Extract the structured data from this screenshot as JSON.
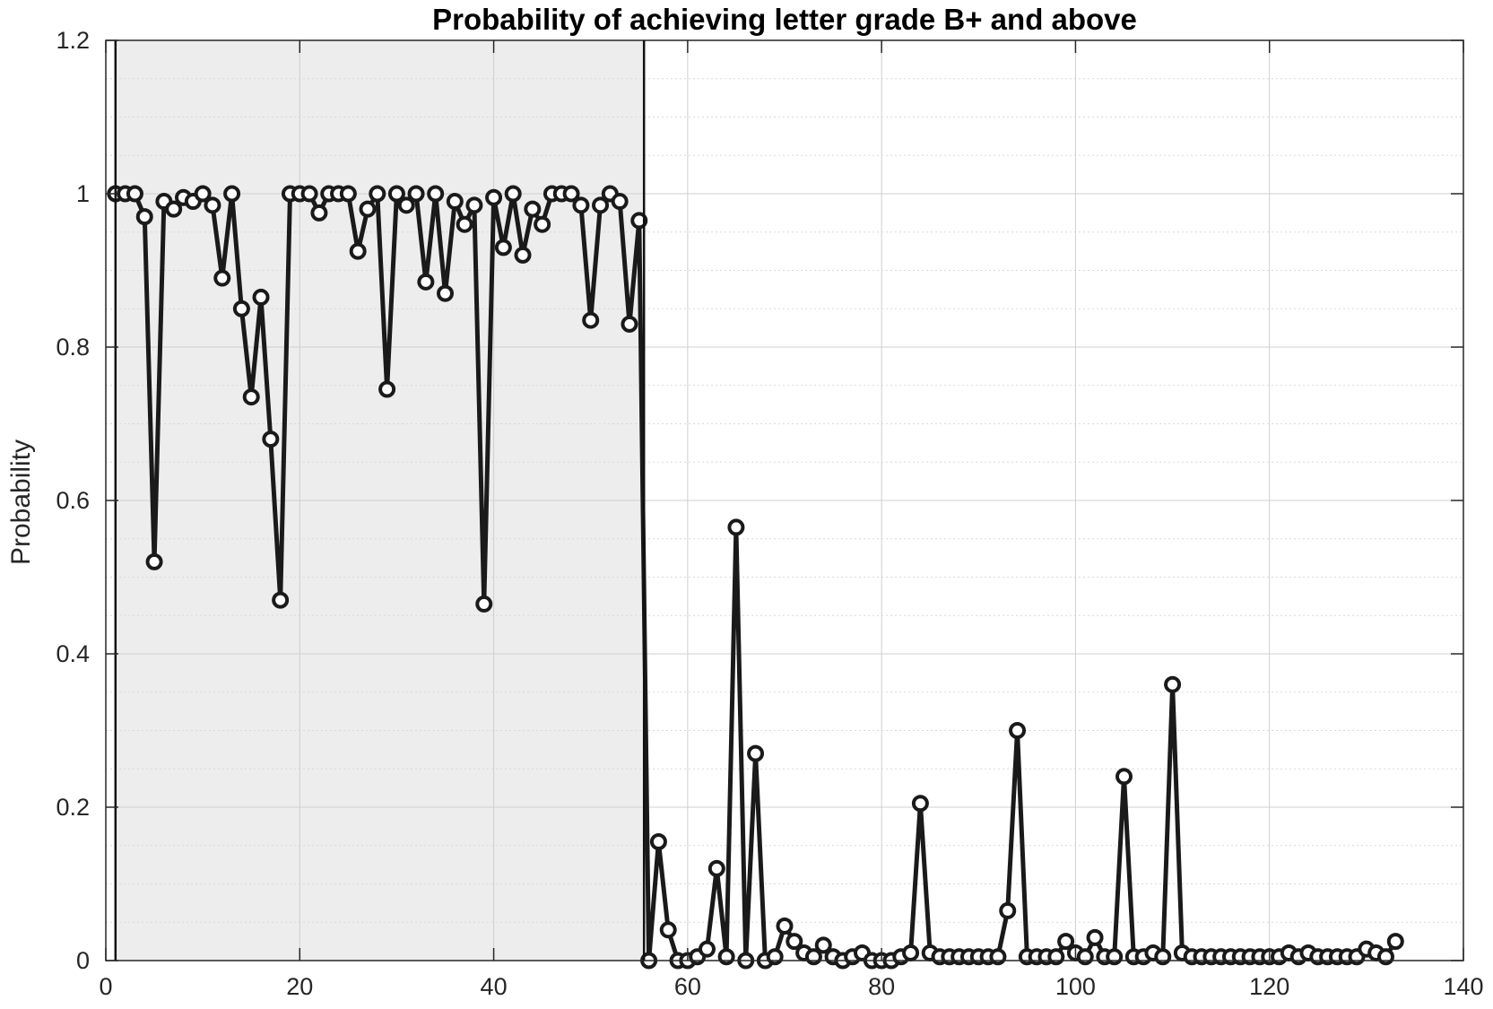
{
  "chart_data": {
    "type": "line",
    "title": "Probability of achieving letter grade B+ and above",
    "xlabel": "",
    "ylabel": "Probability",
    "xlim": [
      0,
      140
    ],
    "ylim": [
      0,
      1.2
    ],
    "xticks": [
      "0",
      "20",
      "40",
      "60",
      "80",
      "100",
      "120",
      "140"
    ],
    "yticks": [
      "0",
      "0.2",
      "0.4",
      "0.6",
      "0.8",
      "1",
      "1.2"
    ],
    "grid": "on",
    "minor_grid_y": "on",
    "shaded_region": {
      "x": [
        1,
        55.5
      ],
      "color": "#ededed"
    },
    "line_color": "#1a1a1a",
    "marker": "circle",
    "x": [
      1,
      2,
      3,
      4,
      5,
      6,
      7,
      8,
      9,
      10,
      11,
      12,
      13,
      14,
      15,
      16,
      17,
      18,
      19,
      20,
      21,
      22,
      23,
      24,
      25,
      26,
      27,
      28,
      29,
      30,
      31,
      32,
      33,
      34,
      35,
      36,
      37,
      38,
      39,
      40,
      41,
      42,
      43,
      44,
      45,
      46,
      47,
      48,
      49,
      50,
      51,
      52,
      53,
      54,
      55,
      56,
      57,
      58,
      59,
      60,
      61,
      62,
      63,
      64,
      65,
      66,
      67,
      68,
      69,
      70,
      71,
      72,
      73,
      74,
      75,
      76,
      77,
      78,
      79,
      80,
      81,
      82,
      83,
      84,
      85,
      86,
      87,
      88,
      89,
      90,
      91,
      92,
      93,
      94,
      95,
      96,
      97,
      98,
      99,
      100,
      101,
      102,
      103,
      104,
      105,
      106,
      107,
      108,
      109,
      110,
      111,
      112,
      113,
      114,
      115,
      116,
      117,
      118,
      119,
      120,
      121,
      122,
      123,
      124,
      125,
      126,
      127,
      128,
      129,
      130,
      131,
      132,
      133
    ],
    "values": [
      1.0,
      1.0,
      1.0,
      0.97,
      0.52,
      0.99,
      0.98,
      0.995,
      0.99,
      1.0,
      0.985,
      0.89,
      1.0,
      0.85,
      0.735,
      0.865,
      0.68,
      0.47,
      1.0,
      1.0,
      1.0,
      0.975,
      1.0,
      1.0,
      1.0,
      0.925,
      0.98,
      1.0,
      0.745,
      1.0,
      0.985,
      1.0,
      0.885,
      1.0,
      0.87,
      0.99,
      0.96,
      0.985,
      0.465,
      0.995,
      0.93,
      1.0,
      0.92,
      0.98,
      0.96,
      1.0,
      1.0,
      1.0,
      0.985,
      0.835,
      0.985,
      1.0,
      0.99,
      0.83,
      0.965,
      0.0,
      0.155,
      0.04,
      0.0,
      0.0,
      0.005,
      0.015,
      0.12,
      0.005,
      0.565,
      0.0,
      0.27,
      0.0,
      0.005,
      0.045,
      0.025,
      0.01,
      0.005,
      0.02,
      0.005,
      0.0,
      0.005,
      0.01,
      0.0,
      0.0,
      0.0,
      0.005,
      0.01,
      0.205,
      0.01,
      0.005,
      0.005,
      0.005,
      0.005,
      0.005,
      0.005,
      0.005,
      0.065,
      0.3,
      0.005,
      0.005,
      0.005,
      0.005,
      0.025,
      0.01,
      0.005,
      0.03,
      0.005,
      0.005,
      0.24,
      0.005,
      0.005,
      0.01,
      0.005,
      0.36,
      0.01,
      0.005,
      0.005,
      0.005,
      0.005,
      0.005,
      0.005,
      0.005,
      0.005,
      0.005,
      0.005,
      0.01,
      0.005,
      0.01,
      0.005,
      0.005,
      0.005,
      0.005,
      0.005,
      0.015,
      0.01,
      0.005,
      0.025
    ]
  }
}
